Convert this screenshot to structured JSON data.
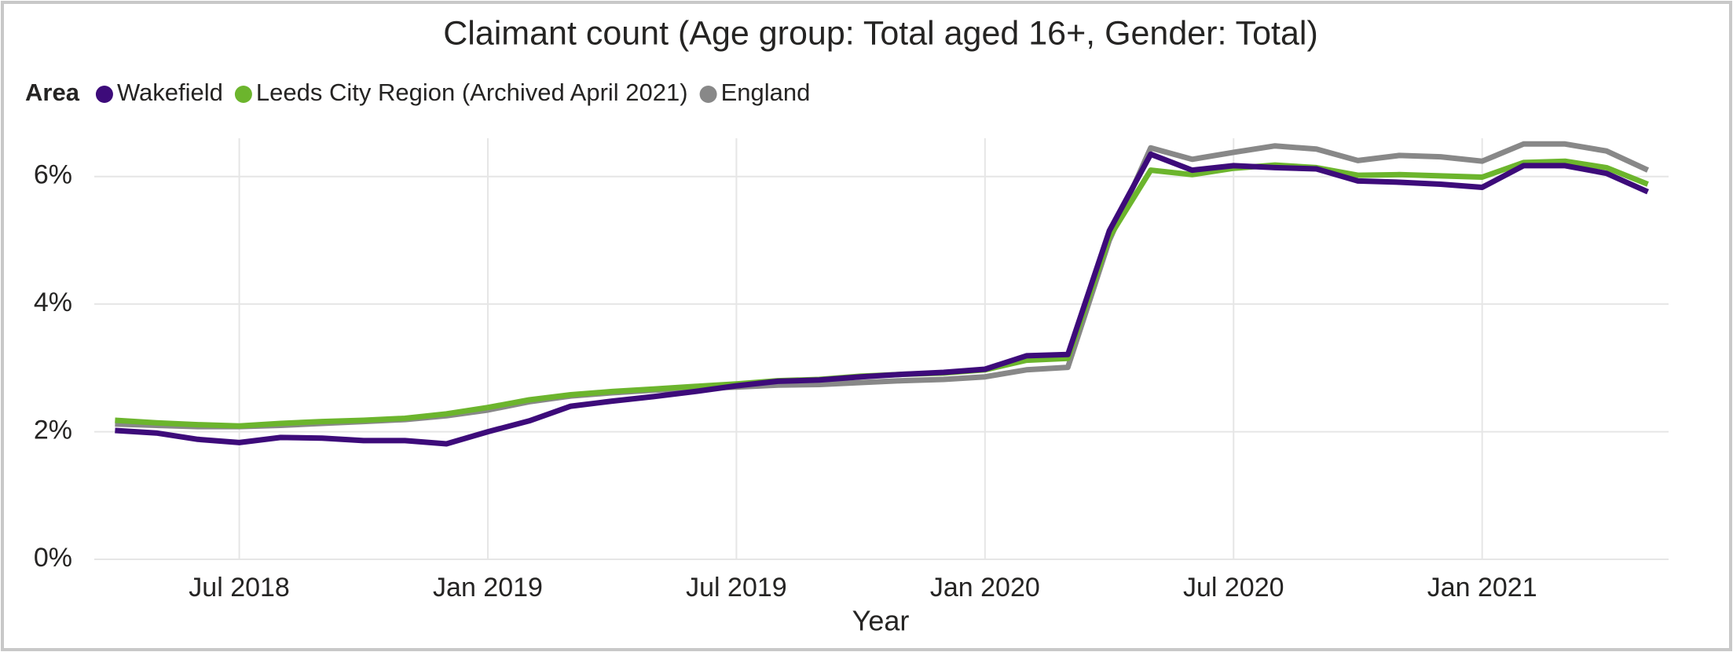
{
  "chart_data": {
    "type": "line",
    "title": "Claimant count  (Age group: Total aged 16+,   Gender: Total)",
    "legend_title": "Area",
    "legend": "top-left",
    "x_label": "Year",
    "x": [
      "2018-04",
      "2018-05",
      "2018-06",
      "2018-07",
      "2018-08",
      "2018-09",
      "2018-10",
      "2018-11",
      "2018-12",
      "2019-01",
      "2019-02",
      "2019-03",
      "2019-04",
      "2019-05",
      "2019-06",
      "2019-07",
      "2019-08",
      "2019-09",
      "2019-10",
      "2019-11",
      "2019-12",
      "2020-01",
      "2020-02",
      "2020-03",
      "2020-04",
      "2020-05",
      "2020-06",
      "2020-07",
      "2020-08",
      "2020-09",
      "2020-10",
      "2020-11",
      "2020-12",
      "2021-01",
      "2021-02",
      "2021-03",
      "2021-04",
      "2021-05"
    ],
    "xticks": [
      {
        "value": "2018-07",
        "label": "Jul 2018"
      },
      {
        "value": "2019-01",
        "label": "Jan 2019"
      },
      {
        "value": "2019-07",
        "label": "Jul 2019"
      },
      {
        "value": "2020-01",
        "label": "Jan 2020"
      },
      {
        "value": "2020-07",
        "label": "Jul 2020"
      },
      {
        "value": "2021-01",
        "label": "Jan 2021"
      }
    ],
    "ylim": [
      0,
      6.6
    ],
    "yticks": [
      {
        "value": 0,
        "label": "0%"
      },
      {
        "value": 2,
        "label": "2%"
      },
      {
        "value": 4,
        "label": "4%"
      },
      {
        "value": 6,
        "label": "6%"
      }
    ],
    "grid": true,
    "series": [
      {
        "name": "Wakefield",
        "color": "#3d0b7a",
        "values": [
          2.02,
          1.98,
          1.88,
          1.83,
          1.91,
          1.9,
          1.86,
          1.86,
          1.81,
          2.0,
          2.17,
          2.4,
          2.48,
          2.55,
          2.63,
          2.72,
          2.79,
          2.81,
          2.86,
          2.9,
          2.93,
          2.98,
          3.19,
          3.21,
          5.15,
          6.35,
          6.1,
          6.17,
          6.14,
          6.12,
          5.93,
          5.91,
          5.88,
          5.83,
          6.17,
          6.17,
          6.05,
          5.76
        ]
      },
      {
        "name": "Leeds City Region (Archived April 2021)",
        "color": "#6cb52d",
        "values": [
          2.18,
          2.14,
          2.11,
          2.09,
          2.13,
          2.16,
          2.18,
          2.21,
          2.28,
          2.38,
          2.5,
          2.58,
          2.63,
          2.67,
          2.71,
          2.75,
          2.8,
          2.82,
          2.87,
          2.9,
          2.92,
          2.97,
          3.12,
          3.15,
          5.05,
          6.1,
          6.03,
          6.13,
          6.18,
          6.14,
          6.02,
          6.03,
          6.01,
          5.99,
          6.22,
          6.24,
          6.14,
          5.88
        ]
      },
      {
        "name": "England",
        "color": "#888888",
        "values": [
          2.12,
          2.1,
          2.08,
          2.08,
          2.1,
          2.13,
          2.16,
          2.19,
          2.25,
          2.34,
          2.47,
          2.56,
          2.61,
          2.65,
          2.68,
          2.7,
          2.73,
          2.74,
          2.77,
          2.8,
          2.82,
          2.86,
          2.97,
          3.01,
          5.0,
          6.45,
          6.27,
          6.38,
          6.48,
          6.43,
          6.25,
          6.33,
          6.31,
          6.24,
          6.51,
          6.51,
          6.4,
          6.1
        ]
      }
    ]
  }
}
